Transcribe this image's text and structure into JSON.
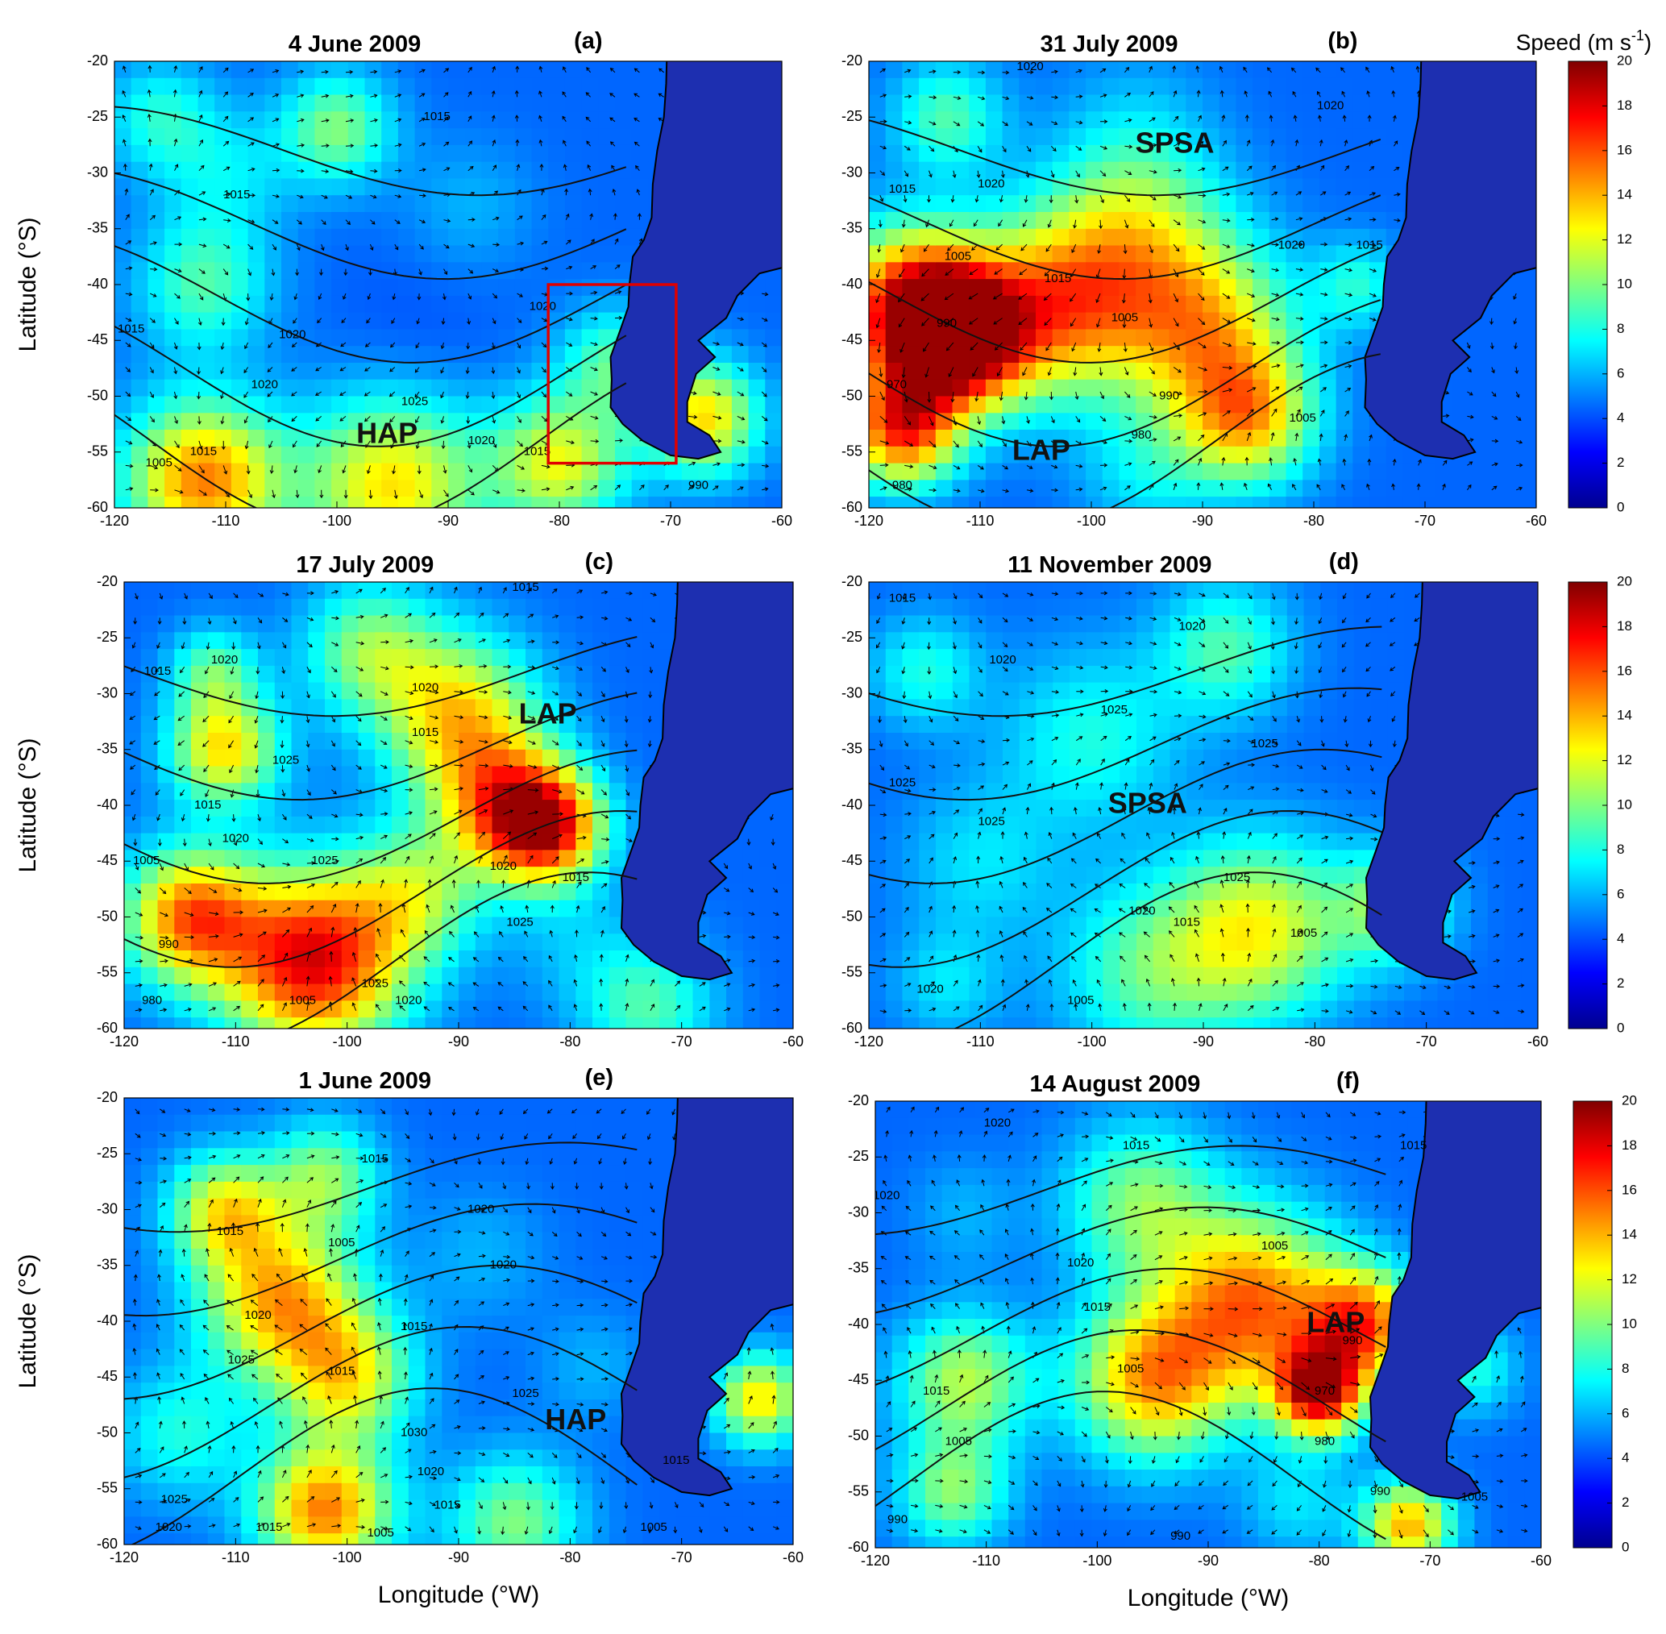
{
  "figure": {
    "y_axis_label": "Latitude (°S)",
    "x_axis_label": "Longitude (°W)",
    "colorbar": {
      "title_main": "Speed (m s",
      "title_sup": "-1",
      "title_close": ")",
      "min": 0,
      "max": 20,
      "ticks": [
        "20",
        "18",
        "16",
        "14",
        "12",
        "10",
        "8",
        "6",
        "4",
        "2",
        "0"
      ],
      "colors": [
        "#00008f",
        "#0000ff",
        "#0080ff",
        "#00ffff",
        "#80ff80",
        "#ffff00",
        "#ff8000",
        "#ff0000",
        "#800000"
      ]
    },
    "map_colors": {
      "land": "#1d2fb0",
      "contour": "#111111",
      "arrow": "#000000"
    },
    "x_ticks": [
      "-120",
      "-110",
      "-100",
      "-90",
      "-80",
      "-70",
      "-60"
    ],
    "y_ticks": [
      "-20",
      "-25",
      "-30",
      "-35",
      "-40",
      "-45",
      "-50",
      "-55",
      "-60"
    ],
    "x_range": [
      -120,
      -60
    ],
    "y_range": [
      -60,
      -20
    ],
    "show_x_label_for": [
      "e",
      "f"
    ],
    "show_y_label_for": [
      "a",
      "c",
      "e"
    ],
    "show_colorbar_for": [
      "b",
      "d",
      "f"
    ]
  },
  "panels": [
    {
      "id": "a",
      "title": "4 June 2009",
      "letter": "(a)",
      "systems": [
        {
          "label": "HAP",
          "lon": -95.5,
          "lat": -53.5
        }
      ],
      "isobars": [
        {
          "label": "1025",
          "lon": -93,
          "lat": -50.5
        },
        {
          "label": "1020",
          "lon": -87,
          "lat": -54
        },
        {
          "label": "1020",
          "lon": -81.5,
          "lat": -42
        },
        {
          "label": "1020",
          "lon": -104,
          "lat": -44.5
        },
        {
          "label": "1020",
          "lon": -106.5,
          "lat": -49
        },
        {
          "label": "1015",
          "lon": -82,
          "lat": -55
        },
        {
          "label": "1015",
          "lon": -112,
          "lat": -55
        },
        {
          "label": "1015",
          "lon": -118.5,
          "lat": -44
        },
        {
          "label": "1015",
          "lon": -109,
          "lat": -32
        },
        {
          "label": "1015",
          "lon": -91,
          "lat": -25
        },
        {
          "label": "1005",
          "lon": -116,
          "lat": -56
        },
        {
          "label": "990",
          "lon": -67.5,
          "lat": -58
        }
      ],
      "box": {
        "lon_min": -81,
        "lon_max": -69.5,
        "lat_min": -56,
        "lat_max": -40
      }
    },
    {
      "id": "b",
      "title": "31 July 2009",
      "letter": "(b)",
      "systems": [
        {
          "label": "SPSA",
          "lon": -92.5,
          "lat": -27.5
        },
        {
          "label": "LAP",
          "lon": -104.5,
          "lat": -55
        }
      ],
      "isobars": [
        {
          "label": "1020",
          "lon": -105.5,
          "lat": -20.5
        },
        {
          "label": "1020",
          "lon": -78.5,
          "lat": -24
        },
        {
          "label": "1020",
          "lon": -109,
          "lat": -31
        },
        {
          "label": "1020",
          "lon": -82,
          "lat": -36.5
        },
        {
          "label": "1015",
          "lon": -117,
          "lat": -31.5
        },
        {
          "label": "1015",
          "lon": -103,
          "lat": -39.5
        },
        {
          "label": "1015",
          "lon": -75,
          "lat": -36.5
        },
        {
          "label": "1005",
          "lon": -112,
          "lat": -37.5
        },
        {
          "label": "1005",
          "lon": -97,
          "lat": -43
        },
        {
          "label": "1005",
          "lon": -81,
          "lat": -52
        },
        {
          "label": "990",
          "lon": -113,
          "lat": -43.5
        },
        {
          "label": "990",
          "lon": -93,
          "lat": -50
        },
        {
          "label": "980",
          "lon": -95.5,
          "lat": -53.5
        },
        {
          "label": "980",
          "lon": -117,
          "lat": -58
        },
        {
          "label": "970",
          "lon": -117.5,
          "lat": -49
        }
      ]
    },
    {
      "id": "c",
      "title": "17 July 2009",
      "letter": "(c)",
      "systems": [
        {
          "label": "LAP",
          "lon": -82,
          "lat": -32
        }
      ],
      "isobars": [
        {
          "label": "1015",
          "lon": -84,
          "lat": -20.5
        },
        {
          "label": "1020",
          "lon": -111,
          "lat": -27
        },
        {
          "label": "1020",
          "lon": -93,
          "lat": -29.5
        },
        {
          "label": "1015",
          "lon": -117,
          "lat": -28
        },
        {
          "label": "1015",
          "lon": -93,
          "lat": -33.5
        },
        {
          "label": "1025",
          "lon": -105.5,
          "lat": -36
        },
        {
          "label": "1020",
          "lon": -110,
          "lat": -43
        },
        {
          "label": "1015",
          "lon": -112.5,
          "lat": -40
        },
        {
          "label": "1020",
          "lon": -86,
          "lat": -45.5
        },
        {
          "label": "1015",
          "lon": -79.5,
          "lat": -46.5
        },
        {
          "label": "1025",
          "lon": -102,
          "lat": -45
        },
        {
          "label": "1025",
          "lon": -84.5,
          "lat": -50.5
        },
        {
          "label": "1005",
          "lon": -118,
          "lat": -45
        },
        {
          "label": "990",
          "lon": -116,
          "lat": -52.5
        },
        {
          "label": "980",
          "lon": -117.5,
          "lat": -57.5
        },
        {
          "label": "1025",
          "lon": -97.5,
          "lat": -56
        },
        {
          "label": "1020",
          "lon": -94.5,
          "lat": -57.5
        },
        {
          "label": "1005",
          "lon": -104,
          "lat": -57.5
        }
      ]
    },
    {
      "id": "d",
      "title": "11 November 2009",
      "letter": "(d)",
      "systems": [
        {
          "label": "SPSA",
          "lon": -95,
          "lat": -40
        }
      ],
      "isobars": [
        {
          "label": "1015",
          "lon": -117,
          "lat": -21.5
        },
        {
          "label": "1020",
          "lon": -91,
          "lat": -24
        },
        {
          "label": "1020",
          "lon": -108,
          "lat": -27
        },
        {
          "label": "1025",
          "lon": -98,
          "lat": -31.5
        },
        {
          "label": "1025",
          "lon": -117,
          "lat": -38
        },
        {
          "label": "1025",
          "lon": -109,
          "lat": -41.5
        },
        {
          "label": "1025",
          "lon": -84.5,
          "lat": -34.5
        },
        {
          "label": "1025",
          "lon": -87,
          "lat": -46.5
        },
        {
          "label": "1020",
          "lon": -95.5,
          "lat": -49.5
        },
        {
          "label": "1015",
          "lon": -91.5,
          "lat": -50.5
        },
        {
          "label": "1005",
          "lon": -81,
          "lat": -51.5
        },
        {
          "label": "1020",
          "lon": -114.5,
          "lat": -56.5
        },
        {
          "label": "1005",
          "lon": -101,
          "lat": -57.5
        }
      ]
    },
    {
      "id": "e",
      "title": "1 June 2009",
      "letter": "(e)",
      "systems": [
        {
          "label": "HAP",
          "lon": -79.5,
          "lat": -49
        }
      ],
      "isobars": [
        {
          "label": "1005",
          "lon": -100.5,
          "lat": -33
        },
        {
          "label": "1015",
          "lon": -110.5,
          "lat": -32
        },
        {
          "label": "1015",
          "lon": -97.5,
          "lat": -25.5
        },
        {
          "label": "1015",
          "lon": -94,
          "lat": -40.5
        },
        {
          "label": "1020",
          "lon": -108,
          "lat": -39.5
        },
        {
          "label": "1025",
          "lon": -109.5,
          "lat": -43.5
        },
        {
          "label": "1015",
          "lon": -100.5,
          "lat": -44.5
        },
        {
          "label": "1020",
          "lon": -88,
          "lat": -30
        },
        {
          "label": "1020",
          "lon": -86,
          "lat": -35
        },
        {
          "label": "1025",
          "lon": -84,
          "lat": -46.5
        },
        {
          "label": "1030",
          "lon": -94,
          "lat": -50
        },
        {
          "label": "1020",
          "lon": -92.5,
          "lat": -53.5
        },
        {
          "label": "1015",
          "lon": -91,
          "lat": -56.5
        },
        {
          "label": "1025",
          "lon": -115.5,
          "lat": -56
        },
        {
          "label": "1020",
          "lon": -116,
          "lat": -58.5
        },
        {
          "label": "1015",
          "lon": -107,
          "lat": -58.5
        },
        {
          "label": "1005",
          "lon": -97,
          "lat": -59
        },
        {
          "label": "1015",
          "lon": -70.5,
          "lat": -52.5
        },
        {
          "label": "1005",
          "lon": -72.5,
          "lat": -58.5
        }
      ]
    },
    {
      "id": "f",
      "title": "14 August 2009",
      "letter": "(f)",
      "systems": [
        {
          "label": "LAP",
          "lon": -78.5,
          "lat": -40
        }
      ],
      "isobars": [
        {
          "label": "1020",
          "lon": -109,
          "lat": -22
        },
        {
          "label": "1015",
          "lon": -71.5,
          "lat": -24
        },
        {
          "label": "1020",
          "lon": -119,
          "lat": -28.5
        },
        {
          "label": "1020",
          "lon": -101.5,
          "lat": -34.5
        },
        {
          "label": "1015",
          "lon": -96.5,
          "lat": -24
        },
        {
          "label": "1015",
          "lon": -100,
          "lat": -38.5
        },
        {
          "label": "1015",
          "lon": -114.5,
          "lat": -46
        },
        {
          "label": "1005",
          "lon": -97,
          "lat": -44
        },
        {
          "label": "1005",
          "lon": -112.5,
          "lat": -50.5
        },
        {
          "label": "1005",
          "lon": -84,
          "lat": -33
        },
        {
          "label": "990",
          "lon": -118,
          "lat": -57.5
        },
        {
          "label": "990",
          "lon": -92.5,
          "lat": -59
        },
        {
          "label": "990",
          "lon": -74.5,
          "lat": -55
        },
        {
          "label": "980",
          "lon": -79.5,
          "lat": -50.5
        },
        {
          "label": "970",
          "lon": -79.5,
          "lat": -46
        },
        {
          "label": "990",
          "lon": -77,
          "lat": -41.5
        },
        {
          "label": "1005",
          "lon": -66,
          "lat": -55.5
        }
      ]
    }
  ]
}
